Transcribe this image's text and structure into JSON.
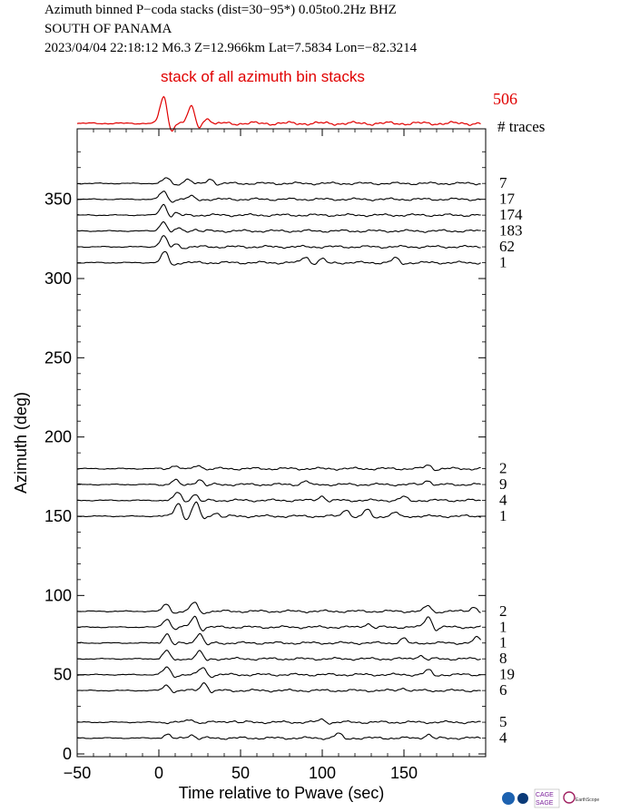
{
  "header": {
    "line1": "Azimuth binned P−coda stacks (dist=30−95*)  0.05to0.2Hz  BHZ",
    "line2": "SOUTH OF PANAMA",
    "line3": "2023/04/04  22:18:12  M6.3  Z=12.966km Lat=7.5834 Lon=−82.3214"
  },
  "stack_panel": {
    "label": "stack of all azimuth bin stacks",
    "total_traces": "506",
    "traces_label": "# traces",
    "color": "#e00000"
  },
  "logos": {
    "names": [
      "nsf-logo",
      "noaa-logo",
      "cage-sage-logo",
      "earthscope-logo"
    ],
    "cage_text": "CAGE",
    "sage_text": "SAGE",
    "earthscope_text": "EarthScope"
  },
  "chart_data": {
    "type": "line",
    "title": "stack of all azimuth bin stacks",
    "xlabel": "Time relative to Pwave (sec)",
    "ylabel": "Azimuth (deg)",
    "xlim": [
      -50,
      200
    ],
    "ylim": [
      0,
      385
    ],
    "x_ticks": [
      -50,
      0,
      50,
      100,
      150
    ],
    "y_ticks": [
      0,
      50,
      100,
      150,
      200,
      250,
      300,
      350
    ],
    "grid": false,
    "series": [
      {
        "azimuth": 360,
        "count": "7",
        "peaks": [
          [
            5,
            6
          ],
          [
            18,
            5
          ],
          [
            32,
            5
          ]
        ]
      },
      {
        "azimuth": 350,
        "count": "17",
        "peaks": [
          [
            3,
            9
          ],
          [
            20,
            3
          ]
        ]
      },
      {
        "azimuth": 340,
        "count": "174",
        "peaks": [
          [
            3,
            12
          ],
          [
            10,
            3
          ]
        ]
      },
      {
        "azimuth": 330,
        "count": "183",
        "peaks": [
          [
            3,
            11
          ],
          [
            12,
            3
          ],
          [
            22,
            2
          ]
        ]
      },
      {
        "azimuth": 320,
        "count": "62",
        "peaks": [
          [
            3,
            12
          ],
          [
            10,
            4
          ]
        ]
      },
      {
        "azimuth": 310,
        "count": "1",
        "peaks": [
          [
            4,
            12
          ],
          [
            90,
            7
          ],
          [
            100,
            4
          ],
          [
            145,
            5
          ]
        ]
      },
      {
        "azimuth": 180,
        "count": "2",
        "peaks": [
          [
            10,
            4
          ],
          [
            25,
            4
          ],
          [
            165,
            4
          ]
        ]
      },
      {
        "azimuth": 170,
        "count": "9",
        "peaks": [
          [
            10,
            5
          ],
          [
            25,
            6
          ],
          [
            90,
            4
          ],
          [
            165,
            5
          ]
        ]
      },
      {
        "azimuth": 160,
        "count": "4",
        "peaks": [
          [
            12,
            9
          ],
          [
            22,
            7
          ],
          [
            100,
            5
          ],
          [
            150,
            4
          ]
        ]
      },
      {
        "azimuth": 150,
        "count": "1",
        "peaks": [
          [
            12,
            15
          ],
          [
            23,
            15
          ],
          [
            35,
            4
          ],
          [
            115,
            8
          ],
          [
            128,
            7
          ],
          [
            145,
            4
          ]
        ]
      },
      {
        "azimuth": 90,
        "count": "2",
        "peaks": [
          [
            5,
            8
          ],
          [
            22,
            10
          ],
          [
            165,
            6
          ],
          [
            193,
            5
          ]
        ]
      },
      {
        "azimuth": 80,
        "count": "1",
        "peaks": [
          [
            5,
            10
          ],
          [
            22,
            12
          ],
          [
            128,
            4
          ],
          [
            165,
            12
          ]
        ]
      },
      {
        "azimuth": 70,
        "count": "1",
        "peaks": [
          [
            5,
            10
          ],
          [
            25,
            11
          ],
          [
            150,
            5
          ],
          [
            195,
            6
          ]
        ]
      },
      {
        "azimuth": 60,
        "count": "8",
        "peaks": [
          [
            5,
            9
          ],
          [
            25,
            8
          ],
          [
            160,
            4
          ]
        ]
      },
      {
        "azimuth": 50,
        "count": "19",
        "peaks": [
          [
            5,
            8
          ],
          [
            27,
            8
          ],
          [
            165,
            5
          ]
        ]
      },
      {
        "azimuth": 40,
        "count": "6",
        "peaks": [
          [
            5,
            6
          ],
          [
            28,
            9
          ],
          [
            150,
            3
          ]
        ]
      },
      {
        "azimuth": 20,
        "count": "5",
        "peaks": [
          [
            20,
            3
          ],
          [
            45,
            2
          ],
          [
            100,
            3
          ]
        ]
      },
      {
        "azimuth": 10,
        "count": "4",
        "peaks": [
          [
            5,
            4
          ],
          [
            20,
            4
          ],
          [
            110,
            5
          ],
          [
            165,
            4
          ]
        ]
      }
    ]
  }
}
